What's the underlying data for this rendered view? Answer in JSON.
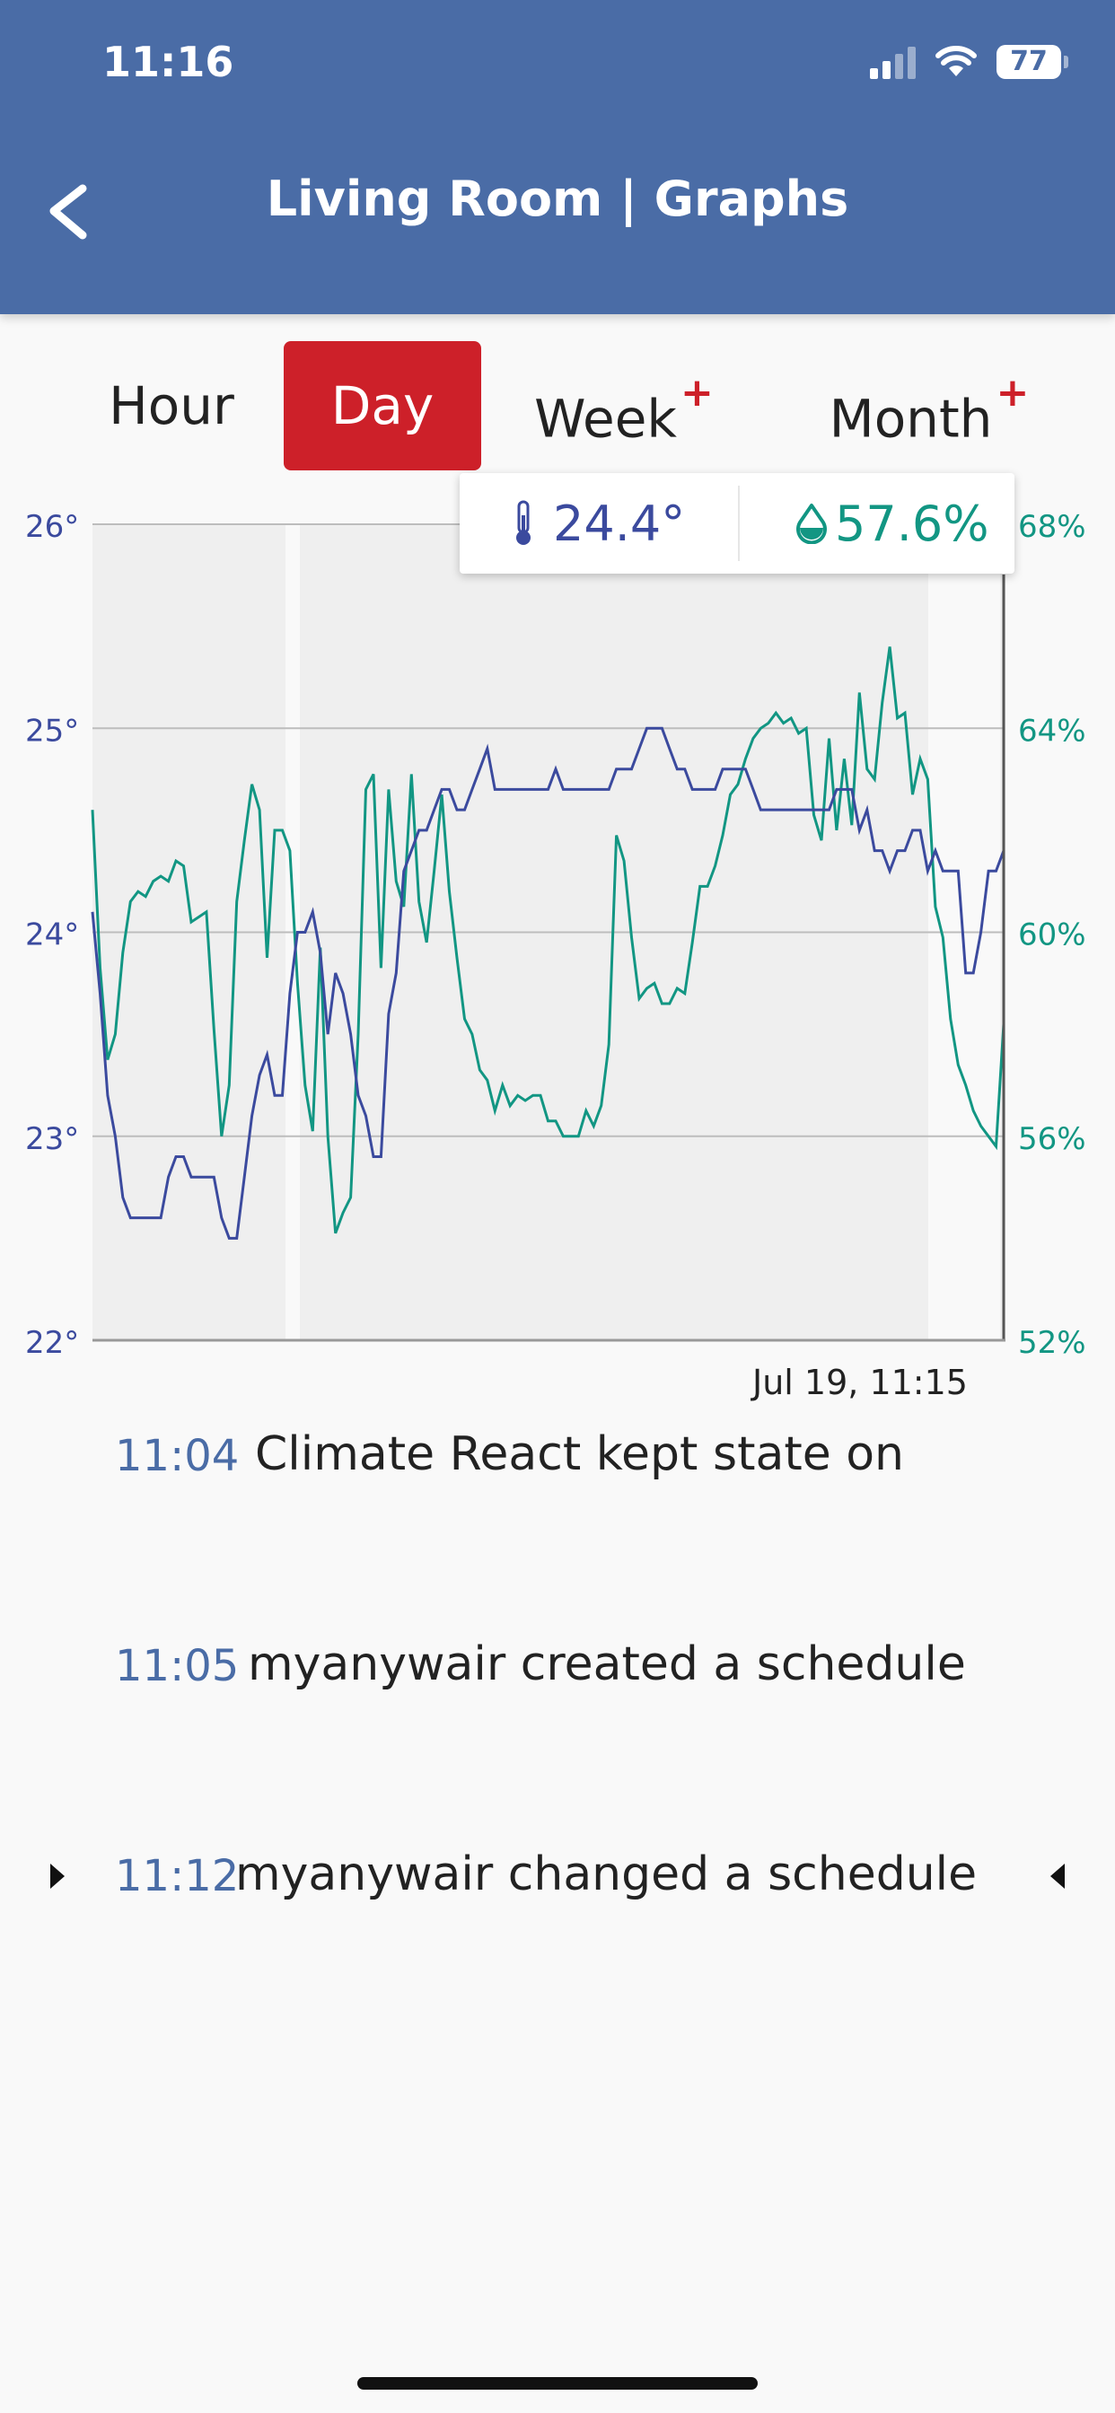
{
  "status_bar": {
    "time": "11:16",
    "battery": "77"
  },
  "header": {
    "title": "Living Room | Graphs"
  },
  "tabs": [
    {
      "label": "Hour",
      "active": false,
      "premium": false
    },
    {
      "label": "Day",
      "active": true,
      "premium": false
    },
    {
      "label": "Week",
      "active": false,
      "premium": true,
      "badge": "+"
    },
    {
      "label": "Month",
      "active": false,
      "premium": true,
      "badge": "+"
    }
  ],
  "tooltip": {
    "temperature": "24.4°",
    "humidity": "57.6%"
  },
  "colors": {
    "header": "#4a6ca6",
    "active_tab": "#cd2029",
    "temperature": "#3b4a9e",
    "humidity": "#129683",
    "premium_badge": "#cd2029"
  },
  "chart_data": {
    "type": "line",
    "title": "",
    "x_label_visible": "Jul 19, 11:15",
    "left_axis": {
      "ticks": [
        "22°",
        "23°",
        "24°",
        "25°",
        "26°"
      ],
      "range": [
        22,
        26
      ]
    },
    "right_axis": {
      "ticks": [
        "52%",
        "56%",
        "60%",
        "64%",
        "68%"
      ],
      "range": [
        52,
        68
      ]
    },
    "grid": true,
    "series": [
      {
        "id": "temperature",
        "axis": "left",
        "values": [
          24.1,
          23.7,
          23.2,
          23.0,
          22.7,
          22.6,
          22.6,
          22.6,
          22.6,
          22.6,
          22.8,
          22.9,
          22.9,
          22.8,
          22.8,
          22.8,
          22.8,
          22.6,
          22.5,
          22.5,
          22.8,
          23.1,
          23.3,
          23.4,
          23.2,
          23.2,
          23.7,
          24.0,
          24.0,
          24.1,
          23.9,
          23.5,
          23.8,
          23.7,
          23.5,
          23.2,
          23.1,
          22.9,
          22.9,
          23.6,
          23.8,
          24.3,
          24.4,
          24.5,
          24.5,
          24.6,
          24.7,
          24.7,
          24.6,
          24.6,
          24.7,
          24.8,
          24.9,
          24.7,
          24.7,
          24.7,
          24.7,
          24.7,
          24.7,
          24.7,
          24.7,
          24.8,
          24.7,
          24.7,
          24.7,
          24.7,
          24.7,
          24.7,
          24.7,
          24.8,
          24.8,
          24.8,
          24.9,
          25.0,
          25.0,
          25.0,
          24.9,
          24.8,
          24.8,
          24.7,
          24.7,
          24.7,
          24.7,
          24.8,
          24.8,
          24.8,
          24.8,
          24.7,
          24.6,
          24.6,
          24.6,
          24.6,
          24.6,
          24.6,
          24.6,
          24.6,
          24.6,
          24.6,
          24.7,
          24.7,
          24.7,
          24.5,
          24.6,
          24.4,
          24.4,
          24.3,
          24.4,
          24.4,
          24.5,
          24.5,
          24.3,
          24.4,
          24.3,
          24.3,
          24.3,
          23.8,
          23.8,
          24.0,
          24.3,
          24.3,
          24.4
        ]
      },
      {
        "id": "humidity",
        "axis": "right",
        "values": [
          62.4,
          59.3,
          57.5,
          58.0,
          59.6,
          60.6,
          60.8,
          60.7,
          61.0,
          61.1,
          61.0,
          61.4,
          61.3,
          60.2,
          60.3,
          60.4,
          58.1,
          56.0,
          57.0,
          60.6,
          61.8,
          62.9,
          62.4,
          59.5,
          62.0,
          62.0,
          61.6,
          59.0,
          57.0,
          56.1,
          59.7,
          56.0,
          54.1,
          54.5,
          54.8,
          58.0,
          62.8,
          63.1,
          59.3,
          62.8,
          61.0,
          60.5,
          63.1,
          60.6,
          59.8,
          61.2,
          62.7,
          60.8,
          59.5,
          58.3,
          58.0,
          57.3,
          57.1,
          56.5,
          57.0,
          56.6,
          56.8,
          56.7,
          56.8,
          56.8,
          56.3,
          56.3,
          56.0,
          56.0,
          56.0,
          56.5,
          56.2,
          56.6,
          57.8,
          61.9,
          61.4,
          59.9,
          58.7,
          58.9,
          59.0,
          58.6,
          58.6,
          58.9,
          58.8,
          59.8,
          60.9,
          60.9,
          61.3,
          61.9,
          62.7,
          62.9,
          63.4,
          63.8,
          64.0,
          64.1,
          64.3,
          64.1,
          64.2,
          63.9,
          64.0,
          62.3,
          61.8,
          63.8,
          62.0,
          63.4,
          62.1,
          64.7,
          63.2,
          63.0,
          64.5,
          65.6,
          64.2,
          64.3,
          62.7,
          63.4,
          63.0,
          60.5,
          59.9,
          58.3,
          57.4,
          57.0,
          56.5,
          56.2,
          56.0,
          55.8,
          58.2
        ]
      }
    ]
  },
  "events": [
    {
      "time": "11:04",
      "text": "Climate React kept state on"
    },
    {
      "time": "11:05",
      "text": "myanywair created a schedule"
    },
    {
      "time": "11:12",
      "text": "myanywair changed a schedule"
    }
  ]
}
